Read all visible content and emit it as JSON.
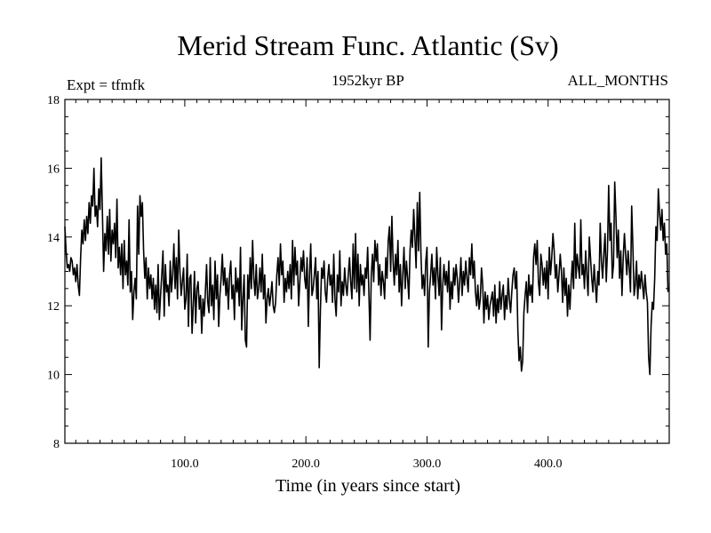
{
  "chart_data": {
    "type": "line",
    "title": "Merid Stream Func. Atlantic (Sv)",
    "subtitle_left": "Expt = tfmfk",
    "subtitle_center": "1952kyr BP",
    "subtitle_right": "ALL_MONTHS",
    "xlabel": "Time (in years since start)",
    "ylabel": "",
    "xlim": [
      1,
      500
    ],
    "ylim": [
      8,
      18
    ],
    "xticks": [
      100,
      200,
      300,
      400
    ],
    "xtick_labels": [
      "100.0",
      "200.0",
      "300.0",
      "400.0"
    ],
    "yticks": [
      8,
      10,
      12,
      14,
      16,
      18
    ],
    "ytick_labels": [
      "8",
      "10",
      "12",
      "14",
      "16",
      "18"
    ],
    "grid": false,
    "series": [
      {
        "name": "Merid Stream Func. Atlantic",
        "x_start": 1,
        "x_step": 1,
        "values": [
          14.3,
          13.6,
          13.1,
          13.2,
          13.0,
          13.4,
          13.3,
          12.9,
          13.1,
          12.7,
          13.2,
          12.6,
          12.3,
          13.4,
          14.2,
          13.8,
          14.5,
          13.9,
          14.6,
          14.1,
          15.0,
          14.4,
          15.2,
          14.9,
          16.0,
          14.6,
          14.9,
          14.3,
          15.4,
          14.8,
          16.3,
          14.7,
          13.0,
          14.1,
          13.6,
          14.6,
          13.5,
          14.8,
          13.3,
          14.2,
          13.8,
          14.4,
          13.4,
          15.1,
          13.1,
          13.7,
          12.9,
          13.8,
          12.5,
          13.9,
          12.9,
          13.3,
          12.6,
          14.5,
          12.4,
          13.0,
          11.6,
          12.4,
          12.8,
          12.2,
          14.9,
          13.5,
          15.2,
          14.6,
          15.0,
          13.6,
          12.8,
          13.4,
          12.2,
          13.1,
          12.5,
          12.9,
          12.2,
          12.8,
          11.9,
          12.6,
          11.8,
          13.2,
          11.6,
          12.3,
          12.9,
          13.6,
          11.7,
          13.2,
          12.4,
          12.6,
          12.0,
          13.3,
          12.4,
          12.9,
          13.8,
          12.5,
          13.4,
          12.2,
          14.2,
          13.0,
          12.3,
          12.7,
          13.1,
          11.9,
          12.2,
          13.5,
          11.4,
          12.8,
          12.9,
          11.2,
          12.0,
          13.0,
          11.5,
          12.5,
          12.7,
          11.9,
          12.3,
          11.2,
          12.2,
          11.7,
          12.4,
          13.2,
          12.1,
          11.8,
          13.4,
          12.0,
          12.6,
          11.6,
          13.3,
          12.2,
          12.9,
          11.4,
          12.3,
          12.8,
          13.5,
          12.6,
          13.1,
          12.3,
          12.8,
          11.9,
          12.9,
          13.3,
          12.2,
          12.6,
          11.6,
          13.1,
          12.4,
          12.8,
          12.0,
          13.7,
          11.3,
          12.2,
          12.9,
          11.0,
          10.8,
          12.9,
          12.2,
          13.4,
          12.5,
          13.9,
          12.8,
          12.3,
          13.2,
          12.2,
          12.5,
          13.1,
          12.4,
          13.5,
          12.2,
          12.9,
          11.5,
          12.2,
          12.5,
          12.0,
          12.3,
          12.7,
          12.0,
          11.8,
          12.1,
          12.9,
          13.4,
          12.6,
          13.8,
          12.9,
          13.3,
          12.1,
          12.8,
          12.4,
          13.0,
          12.5,
          13.2,
          12.2,
          13.9,
          12.6,
          13.7,
          12.9,
          13.3,
          12.0,
          12.7,
          13.4,
          13.0,
          13.6,
          12.8,
          12.5,
          13.4,
          11.4,
          12.9,
          13.8,
          12.3,
          12.5,
          12.9,
          13.4,
          12.2,
          13.0,
          10.2,
          11.9,
          13.1,
          12.8,
          13.3,
          12.4,
          12.1,
          12.8,
          13.2,
          12.6,
          12.9,
          12.1,
          13.5,
          12.2,
          11.7,
          12.9,
          12.4,
          13.6,
          12.0,
          12.7,
          12.3,
          13.1,
          12.6,
          12.3,
          12.9,
          13.4,
          12.7,
          12.2,
          13.8,
          12.5,
          14.1,
          12.4,
          13.5,
          12.0,
          13.2,
          12.6,
          12.9,
          12.3,
          13.1,
          12.8,
          13.7,
          12.4,
          11.0,
          12.9,
          13.5,
          12.7,
          13.9,
          13.3,
          13.8,
          12.6,
          13.2,
          12.3,
          13.0,
          12.7,
          12.2,
          13.4,
          12.8,
          13.9,
          14.3,
          13.0,
          14.6,
          13.3,
          12.6,
          13.5,
          12.9,
          13.9,
          12.4,
          13.2,
          12.0,
          12.9,
          13.7,
          12.5,
          13.3,
          12.8,
          12.2,
          13.6,
          14.2,
          13.7,
          14.8,
          14.0,
          13.1,
          15.0,
          13.6,
          15.3,
          13.5,
          12.5,
          12.9,
          12.3,
          13.3,
          13.7,
          10.8,
          12.4,
          12.9,
          13.5,
          12.6,
          13.1,
          12.2,
          13.7,
          12.9,
          12.3,
          13.4,
          11.3,
          12.6,
          13.2,
          12.6,
          13.0,
          12.4,
          13.3,
          11.9,
          12.7,
          12.2,
          13.1,
          12.6,
          13.2,
          12.8,
          12.1,
          12.7,
          13.4,
          12.3,
          13.0,
          12.6,
          13.3,
          12.8,
          12.4,
          13.4,
          12.9,
          13.8,
          12.8,
          13.3,
          12.4,
          12.0,
          12.6,
          11.9,
          12.2,
          13.1,
          12.6,
          11.5,
          12.4,
          11.9,
          12.3,
          11.6,
          12.0,
          12.2,
          12.4,
          11.7,
          12.6,
          11.5,
          12.2,
          11.8,
          12.7,
          11.9,
          12.3,
          12.6,
          11.6,
          12.3,
          11.9,
          12.8,
          12.2,
          11.8,
          12.4,
          12.9,
          13.1,
          12.5,
          13.0,
          11.3,
          10.4,
          10.8,
          10.1,
          10.4,
          11.8,
          12.3,
          12.7,
          11.8,
          12.9,
          12.3,
          12.6,
          12.1,
          13.4,
          13.8,
          13.2,
          13.9,
          12.7,
          12.3,
          13.5,
          13.2,
          12.6,
          13.1,
          12.5,
          13.3,
          12.2,
          13.7,
          12.9,
          13.4,
          14.1,
          13.6,
          12.8,
          13.2,
          12.4,
          12.9,
          13.5,
          13.0,
          12.1,
          13.1,
          12.3,
          12.8,
          11.7,
          12.6,
          11.9,
          12.7,
          13.3,
          12.5,
          14.4,
          12.8,
          13.5,
          13.1,
          12.8,
          14.5,
          12.9,
          13.2,
          12.5,
          13.6,
          12.9,
          12.3,
          14.0,
          13.4,
          12.8,
          12.4,
          13.2,
          12.6,
          12.1,
          13.0,
          12.6,
          14.4,
          13.3,
          12.8,
          13.5,
          14.1,
          12.7,
          13.6,
          15.5,
          13.9,
          14.4,
          12.8,
          13.2,
          15.6,
          14.6,
          13.4,
          14.2,
          12.8,
          13.6,
          12.3,
          13.4,
          14.1,
          13.5,
          12.9,
          13.6,
          13.1,
          12.4,
          14.9,
          13.7,
          12.3,
          12.6,
          13.3,
          12.2,
          12.9,
          12.5,
          13.0,
          12.6,
          12.2,
          12.9,
          12.4,
          12.1,
          10.5,
          10.0,
          11.4,
          12.1,
          11.9,
          12.8,
          14.3,
          13.9,
          15.4,
          14.7,
          14.2,
          14.8,
          13.9,
          14.4,
          13.5,
          13.8,
          12.4
        ]
      }
    ]
  }
}
